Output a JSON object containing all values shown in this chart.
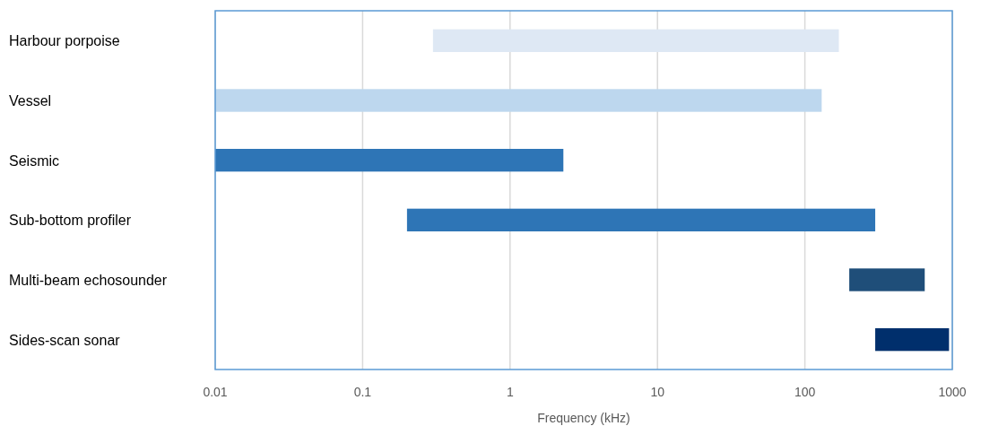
{
  "chart_data": {
    "type": "bar",
    "orientation": "horizontal",
    "log": "x",
    "xlabel": "Frequency (kHz)",
    "categories": [
      "Harbour porpoise",
      "Vessel",
      "Seismic",
      "Sub-bottom profiler",
      "Multi-beam echosounder",
      "Sides-scan sonar"
    ],
    "base": [
      0.3,
      0.01,
      0.01,
      0.2,
      200,
      300
    ],
    "values": [
      169.7,
      129.99,
      2.29,
      299.8,
      450,
      650
    ],
    "colors": [
      "#dee8f4",
      "#bdd7ee",
      "#2e75b6",
      "#2e75b6",
      "#1f4e79",
      "#002f6c"
    ],
    "xlim": [
      0.01,
      1000
    ],
    "xticks": [
      0.01,
      0.1,
      1,
      10,
      100,
      1000
    ],
    "grid": "x"
  }
}
